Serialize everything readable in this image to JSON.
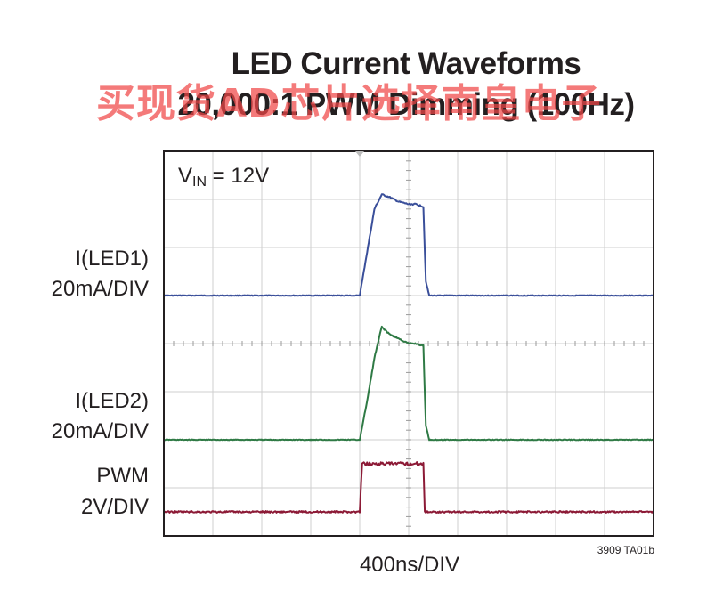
{
  "chart_data": {
    "type": "line",
    "title": "LED Current Waveforms",
    "subtitle": "20,000:1 PWM Dimming (100Hz)",
    "xlabel": "400ns/DIV",
    "annotation": {
      "prefix": "V",
      "sub": "IN",
      "suffix": " = 12V"
    },
    "figure_id": "3909 TA01b",
    "grid": true,
    "x_divisions": 10,
    "y_divisions": 8,
    "series": [
      {
        "name": "I(LED1)",
        "scale": "20mA/DIV",
        "color": "#3a4f9a",
        "baseline_div": 5.0,
        "points": [
          [
            0,
            0
          ],
          [
            4.0,
            0
          ],
          [
            4.15,
            0.9
          ],
          [
            4.3,
            1.8
          ],
          [
            4.45,
            2.1
          ],
          [
            4.6,
            2.05
          ],
          [
            4.8,
            1.95
          ],
          [
            5.0,
            1.9
          ],
          [
            5.15,
            1.9
          ],
          [
            5.3,
            1.85
          ],
          [
            5.35,
            0.3
          ],
          [
            5.42,
            0
          ],
          [
            10,
            0
          ]
        ]
      },
      {
        "name": "I(LED2)",
        "scale": "20mA/DIV",
        "color": "#2f7a45",
        "baseline_div": 2.0,
        "points": [
          [
            0,
            0
          ],
          [
            4.0,
            0
          ],
          [
            4.15,
            0.8
          ],
          [
            4.3,
            1.7
          ],
          [
            4.45,
            2.35
          ],
          [
            4.6,
            2.2
          ],
          [
            4.8,
            2.1
          ],
          [
            5.0,
            2.0
          ],
          [
            5.15,
            2.0
          ],
          [
            5.3,
            1.95
          ],
          [
            5.35,
            0.3
          ],
          [
            5.42,
            0
          ],
          [
            10,
            0
          ]
        ]
      },
      {
        "name": "PWM",
        "scale": "2V/DIV",
        "color": "#8c1a36",
        "baseline_div": 0.5,
        "points": [
          [
            0,
            0
          ],
          [
            4.0,
            0
          ],
          [
            4.05,
            1.0
          ],
          [
            5.0,
            1.0
          ],
          [
            5.2,
            1.0
          ],
          [
            5.3,
            1.0
          ],
          [
            5.33,
            0
          ],
          [
            10,
            0
          ]
        ]
      }
    ]
  },
  "watermark": "买现货AD芯片选择南皇电子",
  "labels": {
    "led1_name": "I(LED1)",
    "led1_scale": "20mA/DIV",
    "led2_name": "I(LED2)",
    "led2_scale": "20mA/DIV",
    "pwm_name": "PWM",
    "pwm_scale": "2V/DIV"
  }
}
